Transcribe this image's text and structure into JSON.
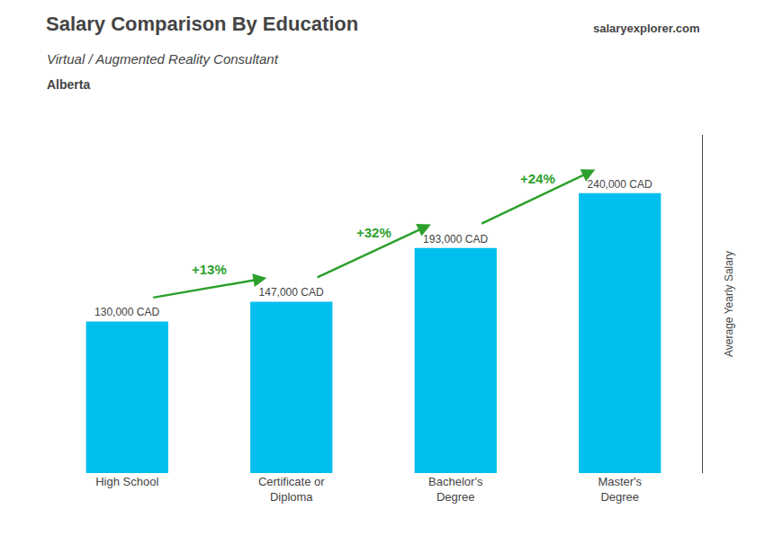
{
  "chart_data": {
    "type": "bar",
    "title": "Salary Comparison By Education",
    "subtitle": "Virtual / Augmented Reality Consultant",
    "ylabel": "Average Yearly Salary",
    "categories": [
      "High School",
      "Certificate or\nDiploma",
      "Bachelor's\nDegree",
      "Master's\nDegree"
    ],
    "values": [
      130000,
      147000,
      193000,
      240000
    ],
    "value_labels": [
      "130,000 CAD",
      "147,000 CAD",
      "193,000 CAD",
      "240,000 CAD"
    ],
    "data_labels": true,
    "color": "#00BFEE",
    "ylim": [
      0,
      290000
    ],
    "yticks": [],
    "grid": false,
    "tick_labels": "x",
    "annotations": [
      {
        "text": "Alberta"
      },
      {
        "text": "salaryexplorer.com"
      },
      {
        "text": "+13%",
        "from": "High School",
        "to": "Certificate or\nDiploma"
      },
      {
        "text": "+32%",
        "from": "Certificate or\nDiploma",
        "to": "Bachelor's\nDegree"
      },
      {
        "text": "+24%",
        "from": "Bachelor's\nDegree",
        "to": "Master's\nDegree"
      }
    ]
  }
}
